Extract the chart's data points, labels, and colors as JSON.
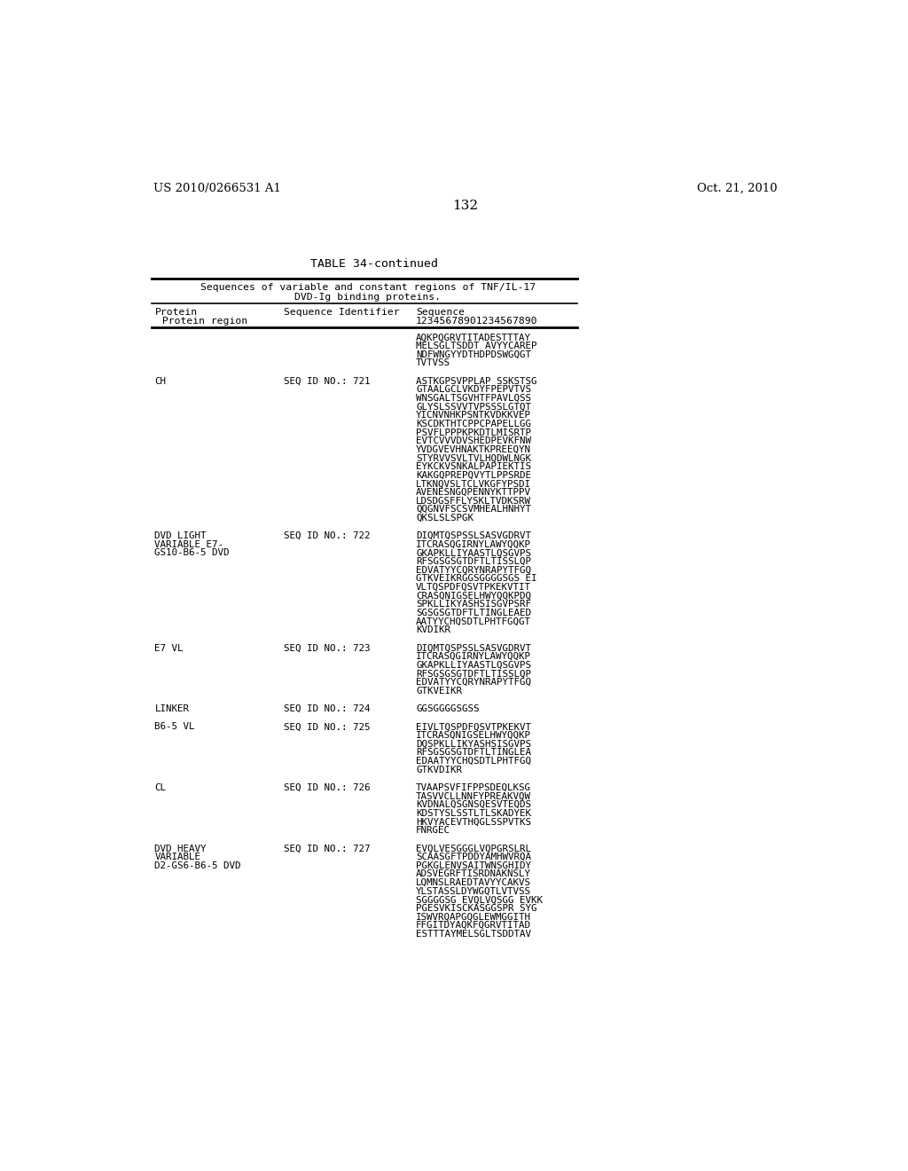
{
  "patent_left": "US 2010/0266531 A1",
  "patent_right": "Oct. 21, 2010",
  "page_number": "132",
  "table_title": "TABLE 34-continued",
  "subtitle_line1": "Sequences of variable and constant regions of TNF/IL-17",
  "subtitle_line2": "DVD-Ig binding proteins.",
  "hdr_protein": "Protein",
  "hdr_region": " Protein region",
  "hdr_seqid": "Sequence Identifier",
  "hdr_seq": "Sequence",
  "hdr_nums": "12345678901234567890",
  "rows": [
    {
      "protein": "",
      "seq_id": "",
      "sequence": [
        "AQKPQGRVTITADESTTTAY",
        "MELSGLTSDDT AVYYCAREP",
        "NDFWNGYYDTHDPDSWGQGT",
        "TVTVSS"
      ]
    },
    {
      "protein": "CH",
      "seq_id": "SEQ ID NO.: 721",
      "sequence": [
        "ASTKGPSVPPLAP SSKSTSG",
        "GTAALGCLVKDYFPEPVTVS",
        "WNSGALTSGVHTFPAVLQSS",
        "GLYSLSSVVTVPSSSLGTQT",
        "YICNVNHKPSNTKVDKKVEP",
        "KSCDKTHTCPPCPAPELLGG",
        "PSVFLPPPKPKDTLMISRTP",
        "EVTCVVVDVSHEDPEVKFNW",
        "YVDGVEVHNAKTKPREEQYN",
        "STYRVVSVLTVLHQDWLNGK",
        "EYKCKVSNKALPAPIEKTIS",
        "KAKGQPREPQVYTLPPSRDE",
        "LTKNQVSLTCLVKGFYPSDI",
        "AVENESNGQPENNYKTTPPV",
        "LDSDGSFFLYSKLTVDKSRW",
        "QQGNVFSCSVMHEALHNHYT",
        "QKSLSLSPGK"
      ]
    },
    {
      "protein": "DVD LIGHT\nVARIABLE E7-\nGS10-B6-5 DVD",
      "seq_id": "SEQ ID NO.: 722",
      "sequence": [
        "DIQMTQSPSSLSASVGDRVT",
        "ITCRASQGIRNYLAWYQQKP",
        "GKAPKLLIYAASTLQSGVPS",
        "RFSGSGSGTDFTLTISSLQP",
        "EDVATYYCQRYNRAPYTFGQ",
        "GTKVEIKRGGSGGGGSGS EI",
        "VLTQSPDFQSVTPKEKVTIT",
        "CRASQNIGSELHWYQQKPDQ",
        "SPKLLIKYASHSISGVPSRF",
        "SGSGSGTDFTLTINGLEAED",
        "AATYYCHQSDTLPHTFGQGT",
        "KVDIKR"
      ]
    },
    {
      "protein": "E7 VL",
      "seq_id": "SEQ ID NO.: 723",
      "sequence": [
        "DIQMTQSPSSLSASVGDRVT",
        "ITCRASQGIRNYLAWYQQKP",
        "GKAPKLLIYAASTLQSGVPS",
        "RFSGSGSGTDFTLTISSLQP",
        "EDVATYYCQRYNRAPYTFGQ",
        "GTKVEIKR"
      ]
    },
    {
      "protein": "LINKER",
      "seq_id": "SEQ ID NO.: 724",
      "sequence": [
        "GGSGGGGSGSS"
      ]
    },
    {
      "protein": "B6-5 VL",
      "seq_id": "SEQ ID NO.: 725",
      "sequence": [
        "EIVLTQSPDFQSVTPKEKVT",
        "ITCRASQNIGSELHWYQQKP",
        "DQSPKLLIKYASHSISGVPS",
        "RFSGSGSGTDFTLTINGLEA",
        "EDAATYYCHQSDTLPHTFGQ",
        "GTKVDIKR"
      ]
    },
    {
      "protein": "CL",
      "seq_id": "SEQ ID NO.: 726",
      "sequence": [
        "TVAAPSVFIFPPSDEQLKSG",
        "TASVVCLLNNFYPREAKVQW",
        "KVDNALQSGNSQESVTEQDS",
        "KDSTYSLSSTLTLSKADYEK",
        "HKVYACEVTHQGLSSPVTKS",
        "FNRGEC"
      ]
    },
    {
      "protein": "DVD HEAVY\nVARIABLE\nD2-GS6-B6-5 DVD",
      "seq_id": "SEQ ID NO.: 727",
      "sequence": [
        "EVQLVESGGGLVQPGRSLRL",
        "SCAASGFTPDDYAMHWVRQA",
        "PGKGLENVSAITWNSGHIDY",
        "ADSVEGRFTISRDNAKNSLY",
        "LQMNSLRAEDTAVYYCAKVS",
        "YLSTASSLDYWGQTLVTVSS",
        "SGGGGSG EVQLVQSGG EVKK",
        "PGESVKISCKASGGSPR SYG",
        "ISWVRQAPGQGLEWMGGITH",
        "FFGITDYAQKFQGRVTITAD",
        "ESTTTAYMELSGLTSDDTAV"
      ]
    }
  ],
  "bg_color": "#ffffff",
  "text_color": "#000000"
}
